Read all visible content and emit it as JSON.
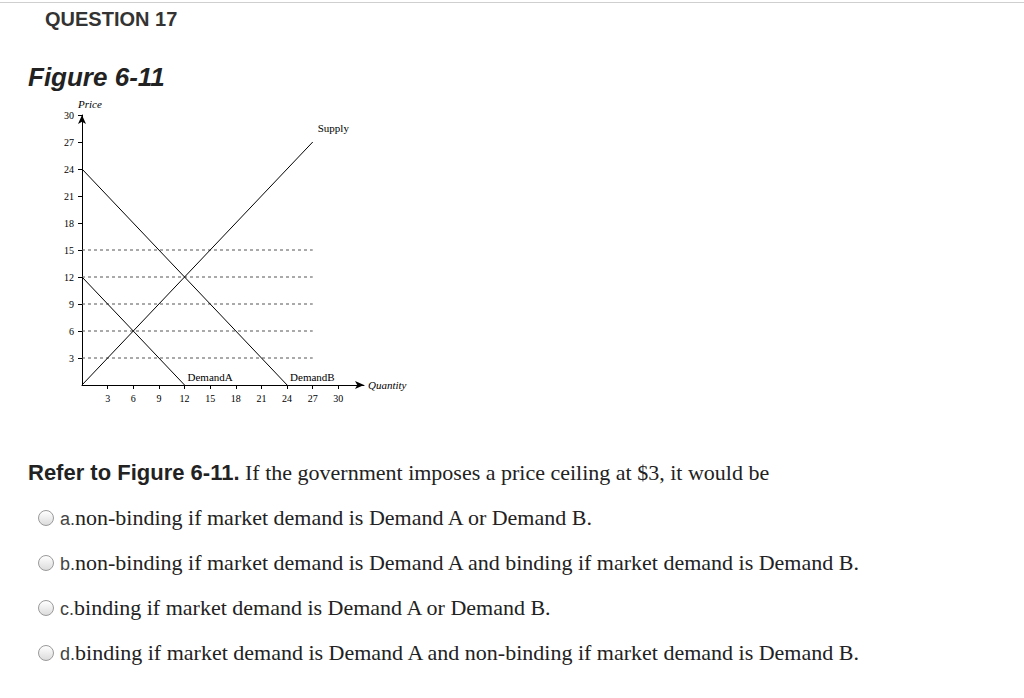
{
  "header": {
    "title": "QUESTION 17"
  },
  "figure": {
    "title": "Figure 6-11"
  },
  "chart_data": {
    "type": "line",
    "x_label": "Quantity",
    "y_label": "Price",
    "xlim": [
      0,
      33
    ],
    "ylim": [
      0,
      30
    ],
    "xticks": [
      3,
      6,
      9,
      12,
      15,
      18,
      21,
      24,
      27,
      30
    ],
    "yticks": [
      3,
      6,
      9,
      12,
      15,
      18,
      21,
      24,
      27,
      30
    ],
    "grid": false,
    "reference_lines": {
      "values": [
        3,
        6,
        9,
        12,
        15
      ],
      "x": [
        0,
        27
      ]
    },
    "series": [
      {
        "name": "Supply",
        "color": "#000000",
        "x": [
          0,
          27
        ],
        "values": [
          0,
          27
        ]
      },
      {
        "name": "DemandA",
        "color": "#000000",
        "x": [
          0,
          12
        ],
        "values": [
          12,
          0
        ]
      },
      {
        "name": "DemandB",
        "color": "#000000",
        "x": [
          0,
          24
        ],
        "values": [
          24,
          0
        ]
      }
    ]
  },
  "question": {
    "lead": "Refer to Figure 6-11.",
    "text": "If the government imposes a price ceiling at $3, it would be",
    "options": [
      {
        "letter": "a.",
        "text": "non-binding if market demand is Demand A or Demand B."
      },
      {
        "letter": "b.",
        "text": "non-binding if market demand is Demand A and binding if market demand is Demand B."
      },
      {
        "letter": "c.",
        "text": "binding if market demand is Demand A or Demand B."
      },
      {
        "letter": "d.",
        "text": "binding if market demand is Demand A and non-binding if market demand is Demand B."
      }
    ]
  }
}
